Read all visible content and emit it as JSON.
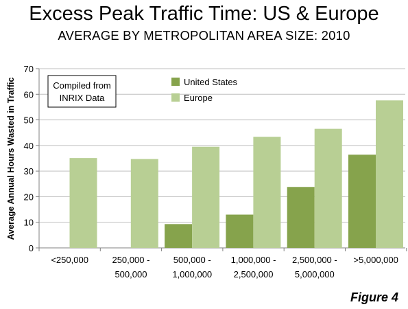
{
  "title": "Excess Peak Traffic Time: US & Europe",
  "subtitle": "AVERAGE BY METROPOLITAN AREA SIZE: 2010",
  "figure_label": "Figure 4",
  "annotation": [
    "Compiled from",
    "INRIX Data"
  ],
  "colors": {
    "us": "#86a34c",
    "europe": "#b8cf94",
    "grid": "#bfbfbf",
    "axis": "#808080"
  },
  "chart_data": {
    "type": "bar",
    "ylabel": "Average Annual Hours Wasted in Traffic",
    "xlabel": "",
    "ylim": [
      0,
      70
    ],
    "yticks": [
      0,
      10,
      20,
      30,
      40,
      50,
      60,
      70
    ],
    "grid": true,
    "legend_position": "top-center",
    "categories": [
      [
        "<250,000"
      ],
      [
        "250,000 -",
        "500,000"
      ],
      [
        "500,000 -",
        "1,000,000"
      ],
      [
        "1,000,000 -",
        "2,500,000"
      ],
      [
        "2,500,000 -",
        "5,000,000"
      ],
      [
        ">5,000,000"
      ]
    ],
    "series": [
      {
        "name": "United States",
        "values": [
          null,
          null,
          9.3,
          13.0,
          23.8,
          36.4
        ]
      },
      {
        "name": "Europe",
        "values": [
          35.1,
          34.7,
          39.5,
          43.4,
          46.5,
          57.6
        ]
      }
    ]
  }
}
